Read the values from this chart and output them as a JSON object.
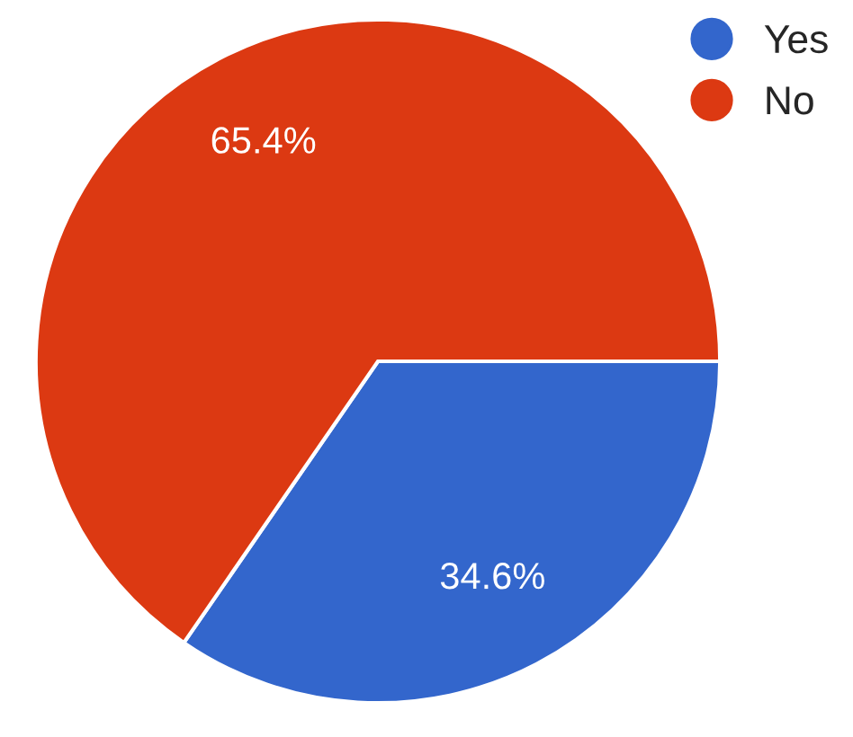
{
  "chart_data": {
    "type": "pie",
    "categories": [
      "Yes",
      "No"
    ],
    "values": [
      34.6,
      65.4
    ],
    "colors": [
      "#3366cc",
      "#dc3912"
    ],
    "value_labels": [
      "34.6%",
      "65.4%"
    ],
    "legend": "top right"
  }
}
